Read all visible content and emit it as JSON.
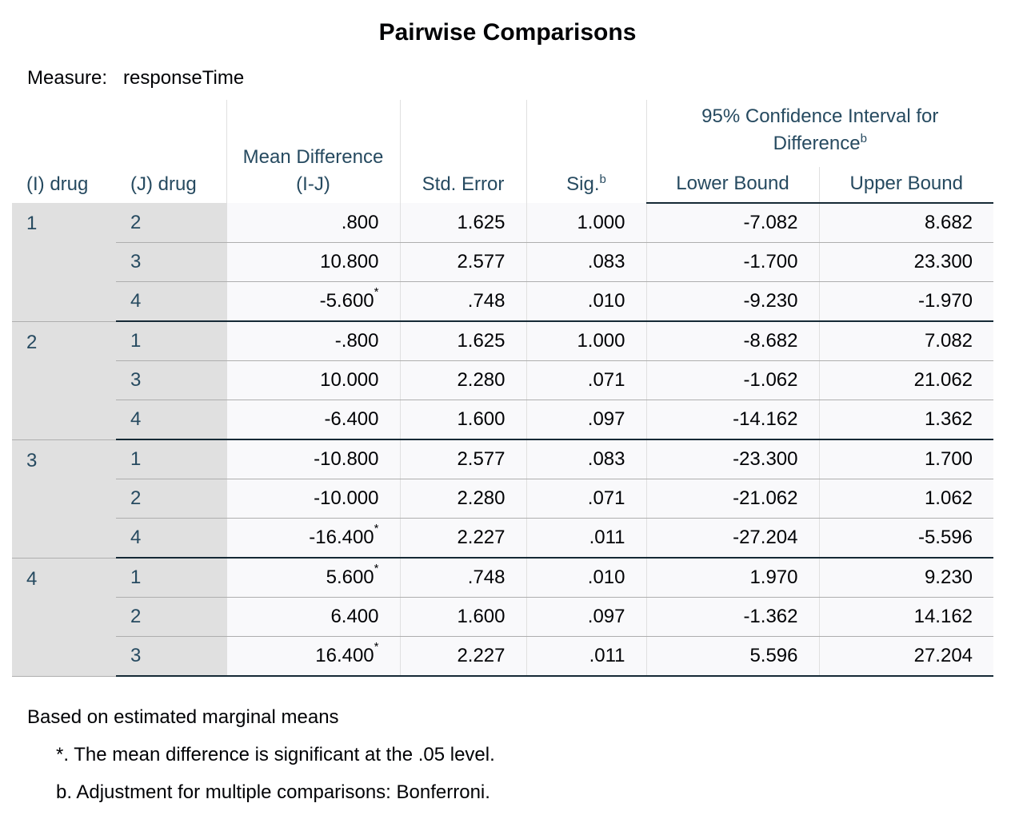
{
  "title": "Pairwise Comparisons",
  "measure": {
    "label": "Measure:",
    "value": "responseTime"
  },
  "headers": {
    "i": "(I) drug",
    "j": "(J) drug",
    "mean_diff": "Mean Difference (I-J)",
    "std_error": "Std. Error",
    "sig": "Sig.",
    "sig_note": "b",
    "ci": "95% Confidence Interval for Difference",
    "ci_note": "b",
    "lower": "Lower Bound",
    "upper": "Upper Bound"
  },
  "groups": [
    {
      "i": "1",
      "rows": [
        {
          "j": "2",
          "mean_diff": ".800",
          "std_error": "1.625",
          "sig": "1.000",
          "lower": "-7.082",
          "upper": "8.682"
        },
        {
          "j": "3",
          "mean_diff": "10.800",
          "std_error": "2.577",
          "sig": ".083",
          "lower": "-1.700",
          "upper": "23.300"
        },
        {
          "j": "4",
          "mean_diff": "-5.600",
          "flag": "*",
          "std_error": ".748",
          "sig": ".010",
          "lower": "-9.230",
          "upper": "-1.970"
        }
      ]
    },
    {
      "i": "2",
      "rows": [
        {
          "j": "1",
          "mean_diff": "-.800",
          "std_error": "1.625",
          "sig": "1.000",
          "lower": "-8.682",
          "upper": "7.082"
        },
        {
          "j": "3",
          "mean_diff": "10.000",
          "std_error": "2.280",
          "sig": ".071",
          "lower": "-1.062",
          "upper": "21.062"
        },
        {
          "j": "4",
          "mean_diff": "-6.400",
          "std_error": "1.600",
          "sig": ".097",
          "lower": "-14.162",
          "upper": "1.362"
        }
      ]
    },
    {
      "i": "3",
      "rows": [
        {
          "j": "1",
          "mean_diff": "-10.800",
          "std_error": "2.577",
          "sig": ".083",
          "lower": "-23.300",
          "upper": "1.700"
        },
        {
          "j": "2",
          "mean_diff": "-10.000",
          "std_error": "2.280",
          "sig": ".071",
          "lower": "-21.062",
          "upper": "1.062"
        },
        {
          "j": "4",
          "mean_diff": "-16.400",
          "flag": "*",
          "std_error": "2.227",
          "sig": ".011",
          "lower": "-27.204",
          "upper": "-5.596"
        }
      ]
    },
    {
      "i": "4",
      "rows": [
        {
          "j": "1",
          "mean_diff": "5.600",
          "flag": "*",
          "std_error": ".748",
          "sig": ".010",
          "lower": "1.970",
          "upper": "9.230"
        },
        {
          "j": "2",
          "mean_diff": "6.400",
          "std_error": "1.600",
          "sig": ".097",
          "lower": "-1.362",
          "upper": "14.162"
        },
        {
          "j": "3",
          "mean_diff": "16.400",
          "flag": "*",
          "std_error": "2.227",
          "sig": ".011",
          "lower": "5.596",
          "upper": "27.204"
        }
      ]
    }
  ],
  "footnotes": [
    "Based on estimated marginal means",
    "*. The mean difference is significant at the .05 level.",
    "b. Adjustment for multiple comparisons: Bonferroni."
  ]
}
